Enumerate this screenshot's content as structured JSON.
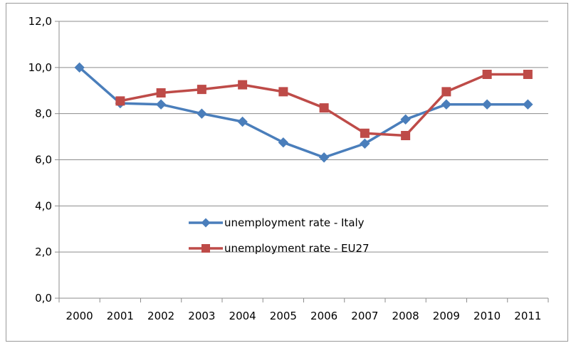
{
  "chart_data": {
    "type": "line",
    "title": "",
    "xlabel": "",
    "ylabel": "",
    "categories": [
      "2000",
      "2001",
      "2002",
      "2003",
      "2004",
      "2005",
      "2006",
      "2007",
      "2008",
      "2009",
      "2010",
      "2011"
    ],
    "ylim": [
      0,
      12
    ],
    "y_ticks": [
      "0,0",
      "2,0",
      "4,0",
      "6,0",
      "8,0",
      "10,0",
      "12,0"
    ],
    "grid": "horizontal",
    "legend_placement": "center",
    "series": [
      {
        "name": "unemployment rate - Italy",
        "color": "#4a7ebb",
        "marker": "diamond",
        "values": [
          10.0,
          8.45,
          8.4,
          8.0,
          7.65,
          6.75,
          6.1,
          6.7,
          7.75,
          8.4,
          8.4,
          8.4
        ]
      },
      {
        "name": "unemployment rate - EU27",
        "color": "#be4b48",
        "marker": "square",
        "values": [
          null,
          8.55,
          8.9,
          9.05,
          9.25,
          8.95,
          8.25,
          7.15,
          7.05,
          8.95,
          9.7,
          9.7
        ]
      }
    ]
  }
}
